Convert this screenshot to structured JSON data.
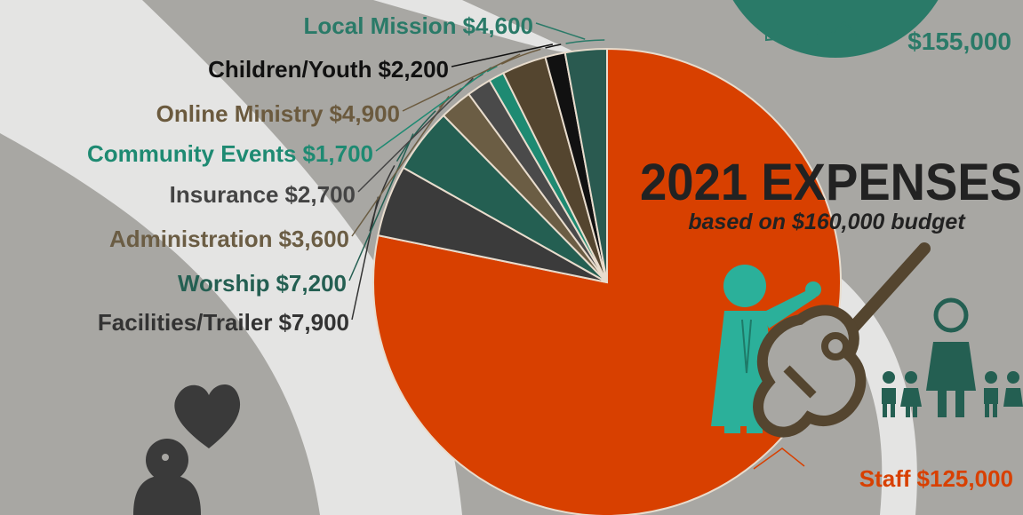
{
  "chart_data": {
    "type": "pie",
    "title": "2021 EXPENSES",
    "subtitle_prefix": "based on",
    "subtitle_emphasis": "$160,000",
    "subtitle_suffix": "budget",
    "income_label": "$155,000",
    "categories": [
      "Staff",
      "Facilities/Trailer",
      "Worship",
      "Administration",
      "Insurance",
      "Community Events",
      "Online Ministry",
      "Children/Youth",
      "Local Mission"
    ],
    "values": [
      125000,
      7900,
      7200,
      3600,
      2700,
      1700,
      4900,
      2200,
      4600
    ],
    "value_labels": [
      "$125,000",
      "$7,900",
      "$7,200",
      "$3,600",
      "$2,700",
      "$1,700",
      "$4,900",
      "$2,200",
      "$4,600"
    ],
    "colors": [
      "#d84000",
      "#3b3b3b",
      "#245f52",
      "#6b5d44",
      "#4a4a4a",
      "#1e8a72",
      "#54452f",
      "#111111",
      "#2a5a50"
    ],
    "label_colors": [
      "#d84000",
      "#333333",
      "#245f52",
      "#6b5d44",
      "#444444",
      "#1e8a72",
      "#6b5a3e",
      "#111111",
      "#2a7a68"
    ]
  }
}
